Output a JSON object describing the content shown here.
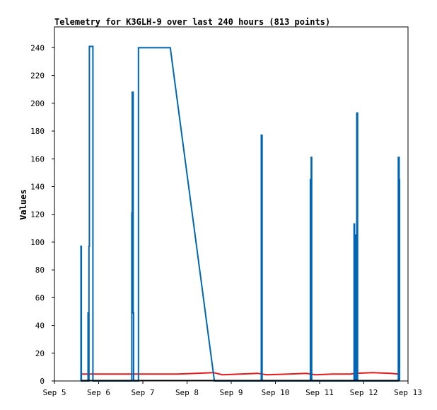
{
  "chart_data": {
    "type": "line",
    "title": "Telemetry for K3GLH-9 over last 240 hours (813 points)",
    "xlabel": "",
    "ylabel": "Values",
    "x_range_days": [
      5,
      13
    ],
    "ylim": [
      0,
      255
    ],
    "x_ticks": [
      {
        "label": "Sep 5",
        "x": 5
      },
      {
        "label": "Sep 6",
        "x": 6
      },
      {
        "label": "Sep 7",
        "x": 7
      },
      {
        "label": "Sep 8",
        "x": 8
      },
      {
        "label": "Sep 9",
        "x": 9
      },
      {
        "label": "Sep 10",
        "x": 10
      },
      {
        "label": "Sep 11",
        "x": 11
      },
      {
        "label": "Sep 12",
        "x": 12
      },
      {
        "label": "Sep 13",
        "x": 13
      }
    ],
    "y_ticks": [
      0,
      20,
      40,
      60,
      80,
      100,
      120,
      140,
      160,
      180,
      200,
      220,
      240
    ],
    "grid": false,
    "series": [
      {
        "color": "#0066b3",
        "x": [
          5.6,
          5.6,
          5.61,
          5.61,
          5.76,
          5.76,
          5.77,
          5.77,
          5.78,
          5.78,
          5.79,
          5.79,
          5.87,
          5.87,
          6.75,
          6.75,
          6.76,
          6.76,
          6.78,
          6.78,
          6.79,
          6.79,
          6.9,
          6.9,
          7.62,
          8.62,
          8.62,
          9.68,
          9.68,
          9.7,
          9.7,
          10.79,
          10.79,
          10.81,
          10.81,
          10.82,
          10.82,
          11.78,
          11.78,
          11.79,
          11.79,
          11.81,
          11.81,
          11.84,
          11.84,
          11.86,
          11.86,
          12.78,
          12.78,
          12.8,
          12.8,
          12.81,
          12.81
        ],
        "y": [
          0,
          97,
          97,
          0,
          0,
          49,
          49,
          0,
          0,
          97,
          97,
          241,
          241,
          0,
          0,
          121,
          121,
          208,
          208,
          49,
          49,
          0,
          0,
          240,
          240,
          0,
          0,
          0,
          177,
          177,
          0,
          0,
          145,
          145,
          161,
          161,
          0,
          0,
          113,
          113,
          105,
          105,
          0,
          0,
          193,
          193,
          0,
          0,
          161,
          161,
          145,
          145,
          0
        ]
      },
      {
        "color": "#e01b1b",
        "x": [
          5.6,
          5.9,
          6.3,
          6.8,
          7.3,
          7.8,
          8.2,
          8.6,
          8.8,
          9.2,
          9.6,
          9.8,
          10.3,
          10.7,
          10.9,
          11.3,
          11.7,
          11.8,
          12.2,
          12.6,
          12.8
        ],
        "y": [
          5,
          5,
          5,
          5,
          5,
          5,
          5.5,
          6,
          4.5,
          5,
          5.5,
          4.5,
          5,
          5.5,
          4.5,
          5,
          5,
          5.5,
          6,
          5.5,
          5
        ]
      }
    ]
  }
}
